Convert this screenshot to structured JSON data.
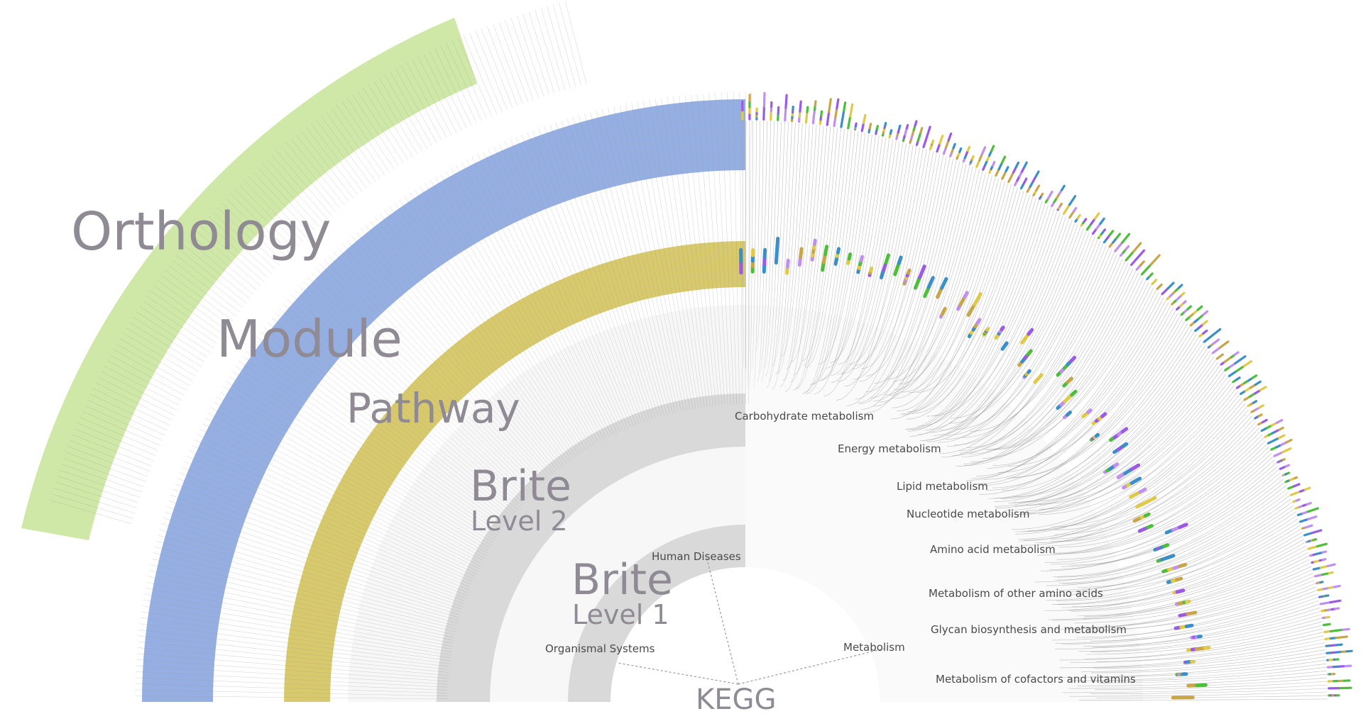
{
  "bands": {
    "orthology": "Orthology",
    "module": "Module",
    "pathway": "Pathway",
    "brite2_title": "Brite",
    "brite2_sub": "Level 2",
    "brite1_title": "Brite",
    "brite1_sub": "Level 1",
    "root": "KEGG"
  },
  "categories": {
    "human_diseases": "Human Diseases",
    "organismal_systems": "Organismal Systems",
    "metabolism": "Metabolism"
  },
  "metabolism_subcategories": [
    "Carbohydrate metabolism",
    "Energy metabolism",
    "Lipid metabolism",
    "Nucleotide metabolism",
    "Amino acid metabolism",
    "Metabolism of other amino acids",
    "Glycan biosynthesis and metabolism",
    "Metabolism of cofactors and vitamins"
  ],
  "colors": {
    "orthology_band": "#cfe8a8",
    "module_band": "#93ade2",
    "pathway_band": "#d8ca6c",
    "brite_band": "#d8d8d8",
    "inner_disc": "#f5f5f5",
    "link": "#8a8a8a",
    "bar_palette": [
      "#3a8fc9",
      "#e0c948",
      "#9b59e6",
      "#c9a54a",
      "#4cbe3a",
      "#c18ff0"
    ]
  }
}
